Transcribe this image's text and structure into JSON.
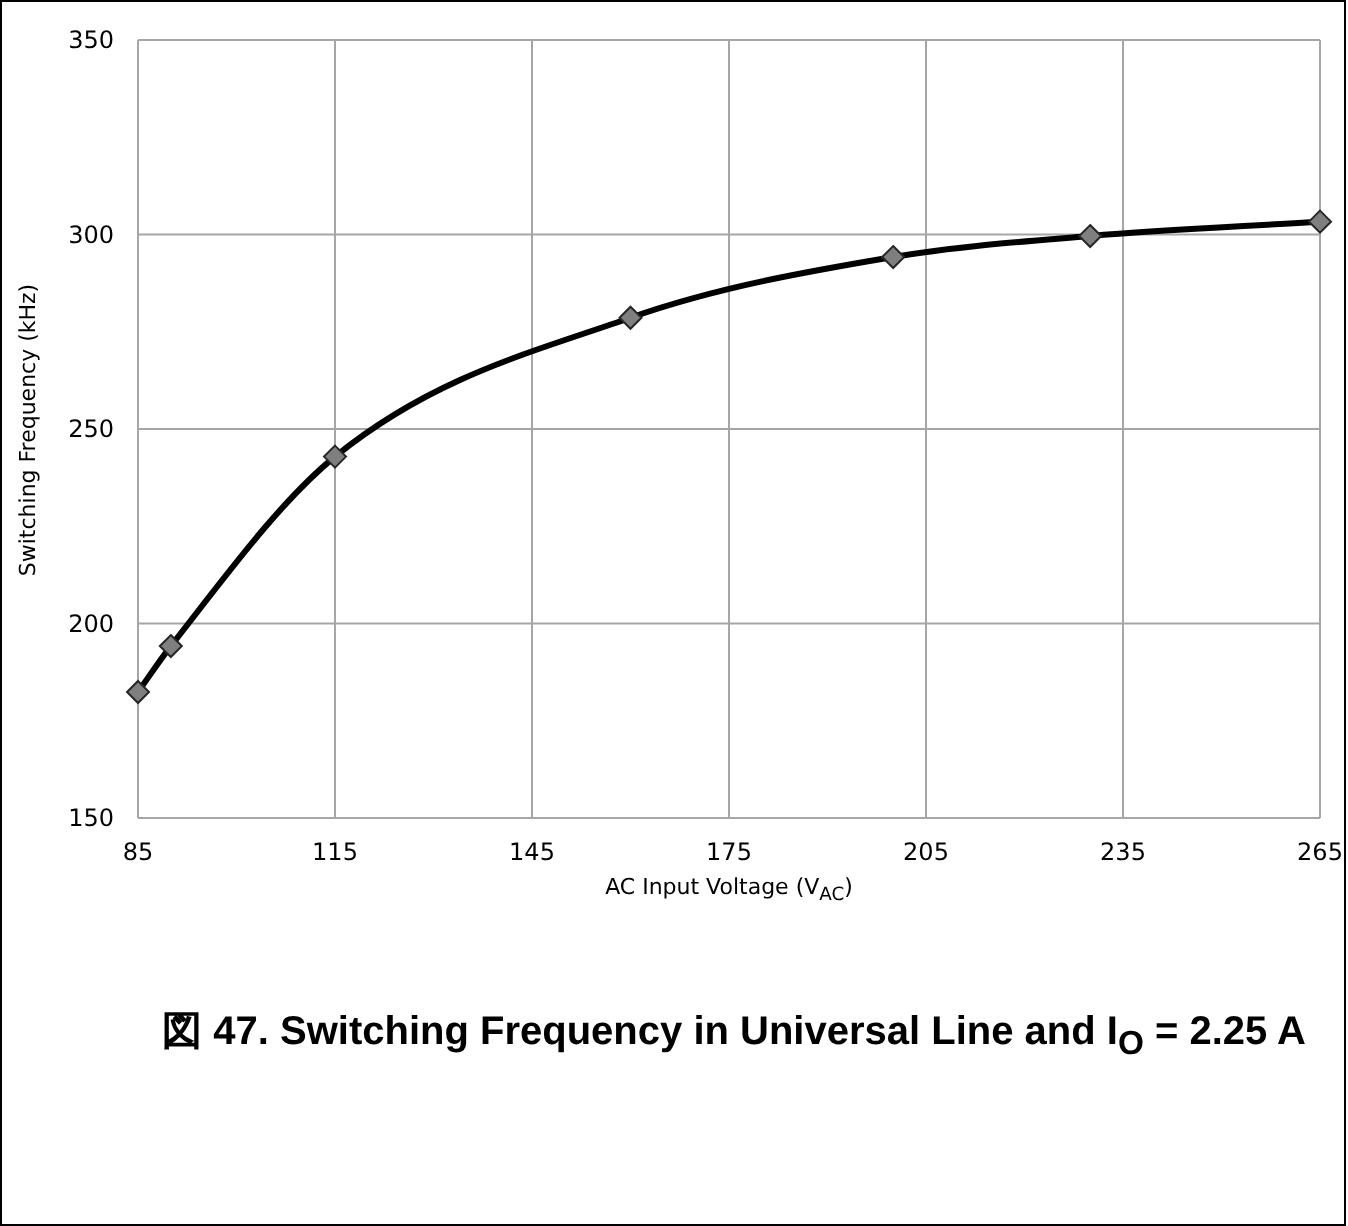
{
  "chart_data": {
    "type": "line",
    "title": "図 47. Switching Frequency in Universal Line and I$_{O}$ = 2.25 A",
    "xlabel": "AC Input Voltage (V$_{AC}$)",
    "ylabel": "Switching Frequency (kHz)",
    "x": [
      85,
      90,
      115,
      160,
      200,
      230,
      265
    ],
    "series": [
      {
        "color": "#000000",
        "values": [
          182.4,
          194.2,
          242.9,
          278.6,
          294.2,
          299.6,
          303.3
        ]
      }
    ],
    "xlim": [
      85,
      265
    ],
    "xticks": [
      85,
      115,
      145,
      175,
      205,
      235,
      265
    ],
    "ylim": [
      150,
      350
    ],
    "yticks": [
      150,
      200,
      250,
      300,
      350
    ],
    "grid": true,
    "marker": "diamond",
    "line_style": "solid"
  }
}
